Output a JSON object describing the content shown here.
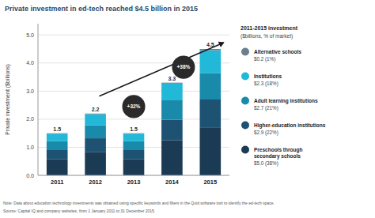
{
  "chart_data": {
    "type": "bar",
    "stacked": true,
    "grid": true,
    "legend": "right",
    "title": "Private investment in ed-tech reached $4.5 billion in 2015",
    "ylabel": "Private investment ($billions)",
    "categories": [
      "2011",
      "2012",
      "2013",
      "2014",
      "2015"
    ],
    "series": [
      {
        "name": "Preschools through\nsecondary schools",
        "share_label": "$5.0 (38%)",
        "color": "#1b3a54",
        "values": [
          0.57,
          0.836,
          0.57,
          1.254,
          1.71
        ]
      },
      {
        "name": "Higher-education institutions",
        "share_label": "$2.9 (22%)",
        "color": "#1d5272",
        "values": [
          0.33,
          0.484,
          0.33,
          0.726,
          0.99
        ]
      },
      {
        "name": "Adult learning institutions",
        "share_label": "$2.7 (21%)",
        "color": "#1a8aaa",
        "values": [
          0.315,
          0.462,
          0.315,
          0.693,
          0.945
        ]
      },
      {
        "name": "Institutions",
        "share_label": "$2.3 (18%)",
        "color": "#22b8d8",
        "values": [
          0.27,
          0.396,
          0.27,
          0.594,
          0.81
        ]
      },
      {
        "name": "Alternative schools",
        "share_label": "$0.2 (1%)",
        "color": "#6a8090",
        "values": [
          0.015,
          0.022,
          0.015,
          0.033,
          0.045
        ]
      }
    ],
    "totals": [
      1.5,
      2.2,
      1.5,
      3.3,
      4.5
    ],
    "annotations": [
      {
        "text": "+32%",
        "x": 2.0,
        "y": 2.45
      },
      {
        "text": "+38%",
        "x": 3.3,
        "y": 3.85
      }
    ],
    "legend_title": "2011-2015 investment",
    "legend_subtitle": "($billions, % of market)",
    "notes": [
      "Note: Data about education technology investments was obtained using specific keywords and filters in the Quid software tool to identify the ed-tech space.",
      "Source: Capital IQ and company websites, from 1 January 2011 to 31 December 2015."
    ],
    "ylim": [
      0,
      5.4
    ],
    "yticks": [
      {
        "value": 0.0,
        "label": "0.0"
      },
      {
        "value": 1.0,
        "label": "1.0"
      },
      {
        "value": 2.0,
        "label": "2.0"
      },
      {
        "value": 3.0,
        "label": "3.0"
      },
      {
        "value": 4.0,
        "label": "4.0"
      },
      {
        "value": 5.0,
        "label": "5.0"
      }
    ]
  }
}
